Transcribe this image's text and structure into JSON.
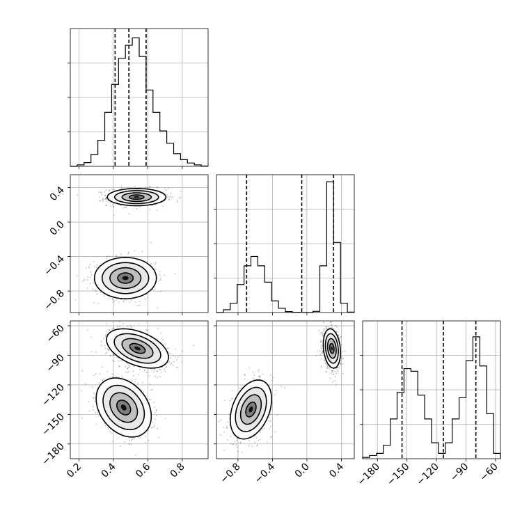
{
  "chart_data": {
    "type": "corner",
    "parameters": [
      {
        "range": [
          0.15,
          0.95
        ],
        "ticks": [
          0.2,
          0.4,
          0.6,
          0.8
        ],
        "tick_labels": [
          "0.2",
          "0.4",
          "0.6",
          "0.8"
        ]
      },
      {
        "range": [
          -1.05,
          0.55
        ],
        "ticks": [
          -0.8,
          -0.4,
          0.0,
          0.4
        ],
        "tick_labels": [
          "−0.8",
          "−0.4",
          "0.0",
          "0.4"
        ]
      },
      {
        "range": [
          -195,
          -55
        ],
        "ticks": [
          -180,
          -150,
          -120,
          -90,
          -60
        ],
        "tick_labels": [
          "−180",
          "−150",
          "−120",
          "−90",
          "−60"
        ]
      }
    ],
    "histograms": [
      {
        "param": 0,
        "bins": [
          0.15,
          0.19,
          0.23,
          0.27,
          0.31,
          0.35,
          0.39,
          0.43,
          0.47,
          0.51,
          0.55,
          0.59,
          0.63,
          0.67,
          0.71,
          0.75,
          0.79,
          0.83,
          0.87,
          0.91,
          0.95
        ],
        "counts": [
          0,
          4,
          10,
          32,
          70,
          145,
          220,
          290,
          325,
          345,
          295,
          205,
          145,
          95,
          62,
          34,
          18,
          9,
          4,
          1
        ],
        "ymax": 370,
        "quantiles": [
          0.41,
          0.49,
          0.59
        ]
      },
      {
        "param": 1,
        "bins": [
          -1.05,
          -0.97,
          -0.89,
          -0.81,
          -0.73,
          -0.65,
          -0.57,
          -0.49,
          -0.41,
          -0.33,
          -0.25,
          -0.17,
          -0.09,
          -0.01,
          0.07,
          0.15,
          0.23,
          0.31,
          0.39,
          0.47,
          0.55
        ],
        "counts": [
          0,
          12,
          40,
          120,
          200,
          240,
          200,
          130,
          50,
          18,
          4,
          1,
          0,
          0,
          5,
          200,
          560,
          300,
          40,
          2
        ],
        "ymax": 590,
        "quantiles": [
          -0.7,
          -0.06,
          0.31
        ]
      },
      {
        "param": 2,
        "bins": [
          -195,
          -188,
          -181,
          -174,
          -167,
          -160,
          -153,
          -146,
          -139,
          -132,
          -125,
          -118,
          -111,
          -104,
          -97,
          -90,
          -83,
          -76,
          -69,
          -62,
          -55
        ],
        "counts": [
          5,
          12,
          20,
          50,
          150,
          250,
          340,
          330,
          240,
          150,
          60,
          20,
          60,
          150,
          230,
          370,
          460,
          350,
          170,
          20
        ],
        "ymax": 520,
        "quantiles": [
          -155,
          -113,
          -80
        ]
      }
    ],
    "joint": [
      {
        "x_param": 0,
        "y_param": 1,
        "modes": [
          {
            "x": 0.535,
            "y": 0.29,
            "sx": 0.085,
            "sy": 0.05,
            "rho": 0.0,
            "weight": 0.55
          },
          {
            "x": 0.47,
            "y": -0.65,
            "sx": 0.09,
            "sy": 0.12,
            "rho": 0.0,
            "weight": 0.45
          }
        ]
      },
      {
        "x_param": 0,
        "y_param": 2,
        "modes": [
          {
            "x": 0.54,
            "y": -83,
            "sx": 0.09,
            "sy": 10,
            "rho": -0.45,
            "weight": 0.55
          },
          {
            "x": 0.46,
            "y": -143,
            "sx": 0.08,
            "sy": 15,
            "rho": -0.3,
            "weight": 0.45
          }
        ]
      },
      {
        "x_param": 1,
        "y_param": 2,
        "modes": [
          {
            "x": 0.29,
            "y": -83,
            "sx": 0.05,
            "sy": 10,
            "rho": -0.2,
            "weight": 0.55
          },
          {
            "x": -0.65,
            "y": -145,
            "sx": 0.12,
            "sy": 15,
            "rho": 0.35,
            "weight": 0.45
          }
        ]
      }
    ],
    "grid": true,
    "contour_levels_sigma": [
      0.5,
      1.0,
      1.5,
      2.0
    ]
  }
}
